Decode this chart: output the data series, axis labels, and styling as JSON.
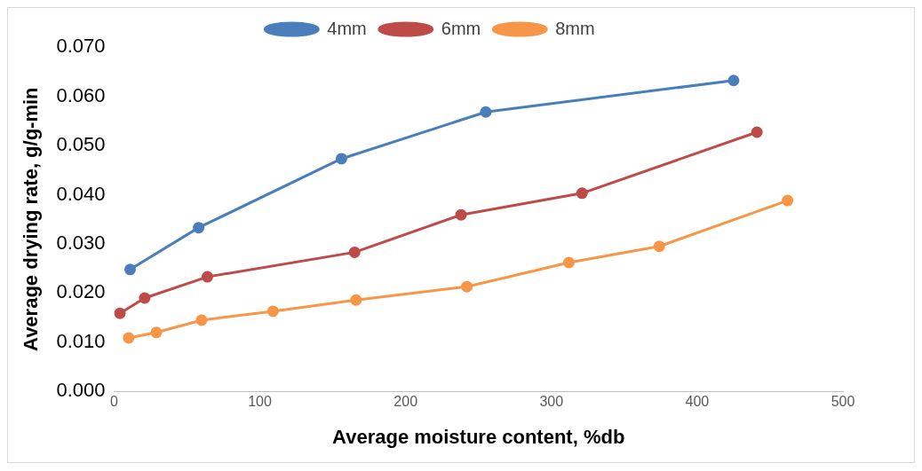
{
  "chart_data": {
    "type": "line",
    "xlabel": "Average moisture content, %db",
    "ylabel": "Average drying rate, g/g-min",
    "xlim": [
      0,
      500
    ],
    "xticks": [
      0,
      100,
      200,
      300,
      400,
      500
    ],
    "ylim": [
      0,
      0.07
    ],
    "yticks": [
      {
        "value": 0,
        "label": "0.000"
      },
      {
        "value": 0.01,
        "label": "0.010"
      },
      {
        "value": 0.02,
        "label": "0.020"
      },
      {
        "value": 0.03,
        "label": "0.030"
      },
      {
        "value": 0.04,
        "label": "0.040"
      },
      {
        "value": 0.05,
        "label": "0.050"
      },
      {
        "value": 0.06,
        "label": "0.060"
      },
      {
        "value": 0.07,
        "label": "0.070"
      }
    ],
    "grid": false,
    "legend": "top",
    "marker": "circle",
    "line_style": "solid",
    "series": [
      {
        "name": "4mm",
        "color": "#4a7ebb",
        "x": [
          11,
          58,
          156,
          255,
          425
        ],
        "values": [
          0.0248,
          0.0333,
          0.0473,
          0.0568,
          0.0632
        ]
      },
      {
        "name": "6mm",
        "color": "#be4b48",
        "x": [
          4,
          21,
          64,
          165,
          238,
          321,
          441
        ],
        "values": [
          0.0159,
          0.019,
          0.0233,
          0.0283,
          0.0359,
          0.0403,
          0.0527
        ]
      },
      {
        "name": "8mm",
        "color": "#f79646",
        "x": [
          10,
          29,
          60,
          109,
          166,
          242,
          312,
          374,
          462
        ],
        "values": [
          0.0109,
          0.012,
          0.0145,
          0.0163,
          0.0186,
          0.0213,
          0.0262,
          0.0295,
          0.0388
        ]
      }
    ]
  }
}
